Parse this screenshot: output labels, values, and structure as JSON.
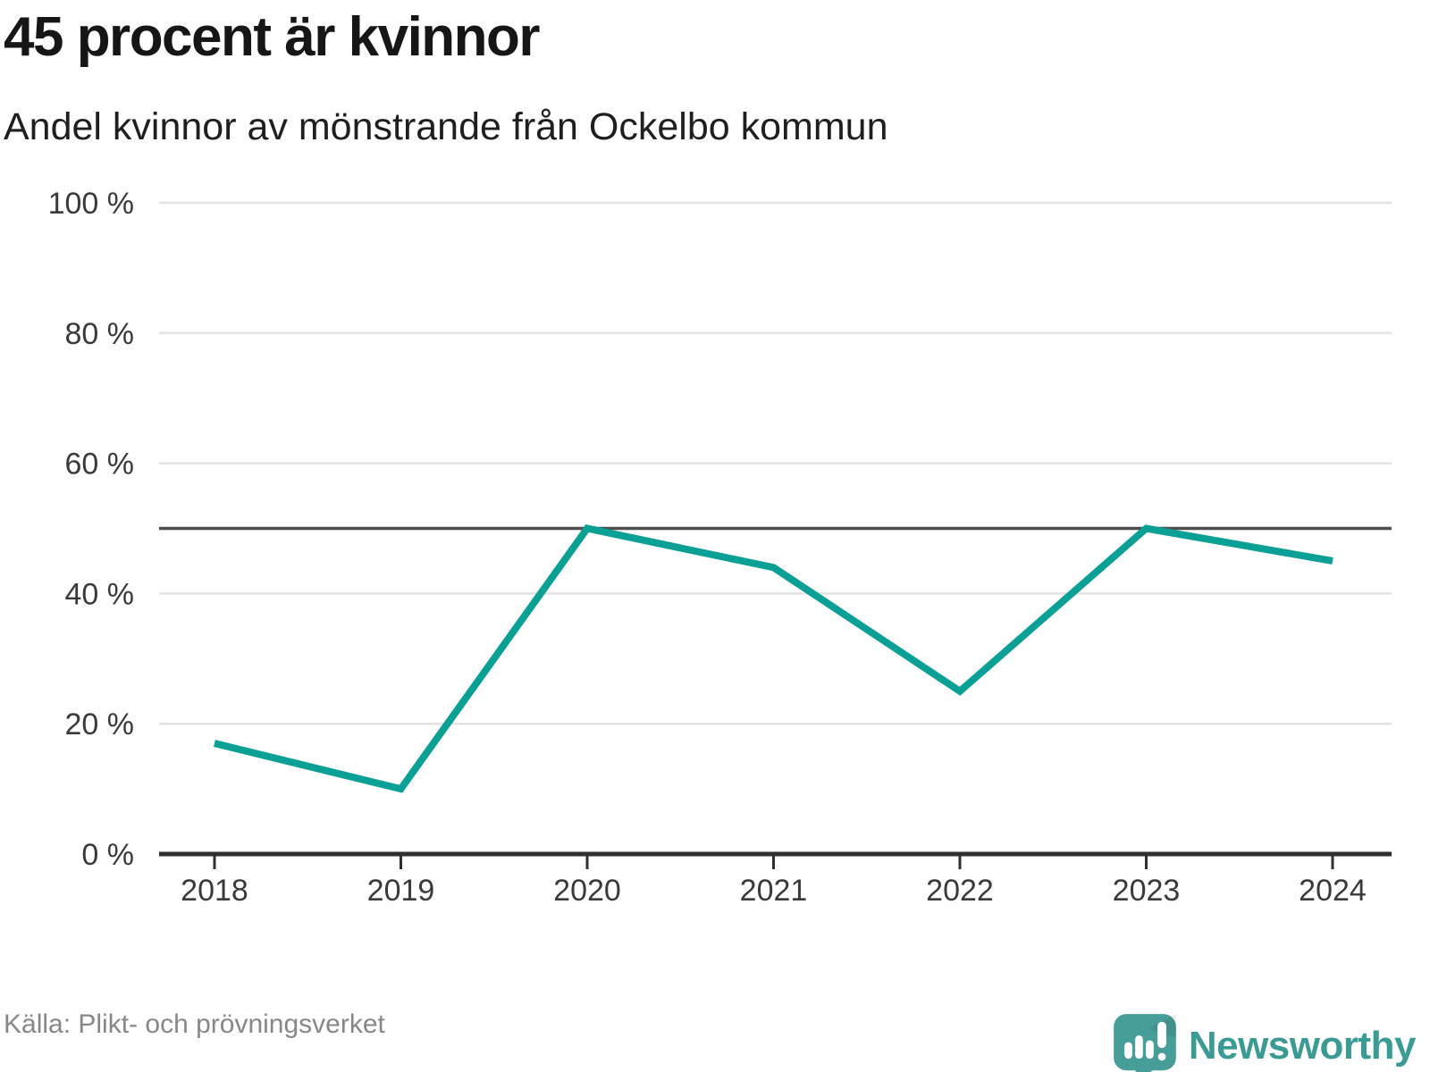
{
  "header": {
    "title": "45 procent är kvinnor",
    "subtitle": "Andel kvinnor av mönstrande från Ockelbo kommun"
  },
  "chart_data": {
    "type": "line",
    "title": "45 procent är kvinnor",
    "subtitle": "Andel kvinnor av mönstrande från Ockelbo kommun",
    "categories": [
      "2018",
      "2019",
      "2020",
      "2021",
      "2022",
      "2023",
      "2024"
    ],
    "series": [
      {
        "name": "Andel kvinnor av mönstrande",
        "values": [
          17,
          10,
          50,
          44,
          25,
          50,
          45
        ]
      }
    ],
    "xlabel": "",
    "ylabel": "",
    "ylim": [
      0,
      100
    ],
    "yticks": [
      0,
      20,
      40,
      60,
      80,
      100
    ],
    "ytick_suffix": " %",
    "reference_line": 50,
    "grid": true,
    "legend": "none",
    "source": "Källa: Plikt- och prövningsverket"
  },
  "footer": {
    "source": "Källa: Plikt- och prövningsverket",
    "brand": "Newsworthy"
  },
  "colors": {
    "line": "#0aa096",
    "reference_line": "#4d4d4d",
    "axis": "#2f2f2f",
    "grid": "#e2e2e2",
    "tick_text": "#3a3a3a",
    "brand_teal": "#3a9a94",
    "logo_fill": "#479e99"
  }
}
